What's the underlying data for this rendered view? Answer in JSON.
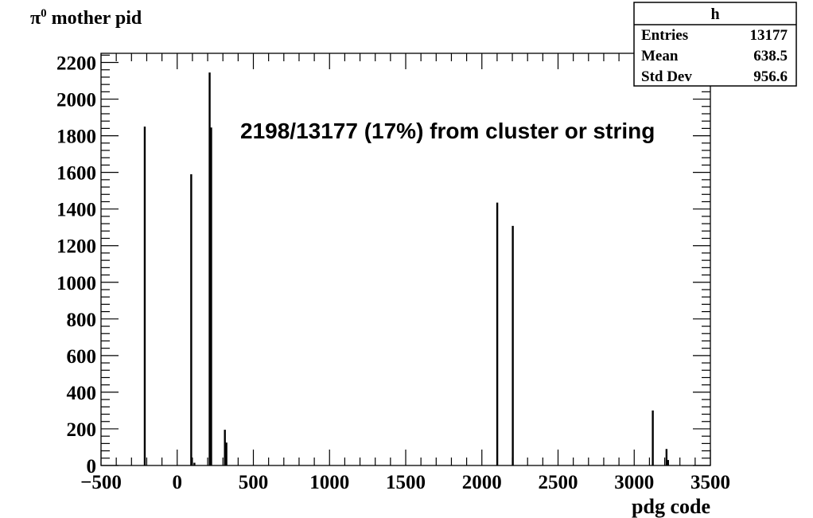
{
  "chart_data": {
    "type": "bar",
    "title": "π⁰ mother pid",
    "title_base": "π",
    "title_sup": "0",
    "title_rest": " mother pid",
    "xlabel": "pdg code",
    "ylabel": "",
    "xlim": [
      -500,
      3500
    ],
    "ylim": [
      0,
      2250
    ],
    "xticks": [
      -500,
      0,
      500,
      1000,
      1500,
      2000,
      2500,
      3000,
      3500
    ],
    "xtick_labels": [
      "−500",
      "0",
      "500",
      "1000",
      "1500",
      "2000",
      "2500",
      "3000",
      "3500"
    ],
    "yticks": [
      0,
      200,
      400,
      600,
      800,
      1000,
      1200,
      1400,
      1600,
      1800,
      2000,
      2200
    ],
    "annotation": "2198/13177 (17%) from cluster or string",
    "points": [
      {
        "x": -213,
        "y": 1850
      },
      {
        "x": 92,
        "y": 1590
      },
      {
        "x": 113,
        "y": 15
      },
      {
        "x": 213,
        "y": 2145
      },
      {
        "x": 223,
        "y": 1845
      },
      {
        "x": 313,
        "y": 195
      },
      {
        "x": 323,
        "y": 125
      },
      {
        "x": 2101,
        "y": 1435
      },
      {
        "x": 2203,
        "y": 1308
      },
      {
        "x": 3122,
        "y": 300
      },
      {
        "x": 3212,
        "y": 90
      },
      {
        "x": 3222,
        "y": 30
      }
    ]
  },
  "stats": {
    "title": "h",
    "rows": [
      {
        "label": "Entries",
        "value": "13177"
      },
      {
        "label": "Mean",
        "value": "638.5"
      },
      {
        "label": "Std Dev",
        "value": "956.6"
      }
    ]
  }
}
